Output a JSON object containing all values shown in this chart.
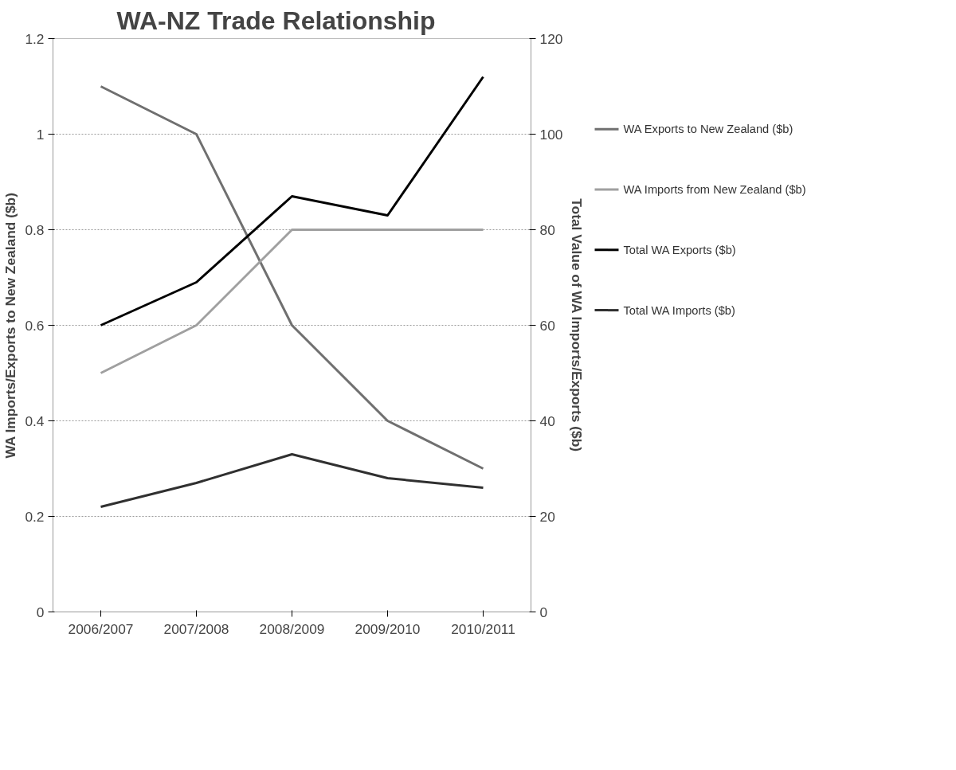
{
  "chart_data": {
    "type": "line",
    "title": "WA-NZ Trade Relationship",
    "categories": [
      "2006/2007",
      "2007/2008",
      "2008/2009",
      "2009/2010",
      "2010/2011"
    ],
    "ylabel": "WA Imports/Exports to New Zealand ($b)",
    "y2label": "Total Value of WA Imports/Exports ($b)",
    "ylim": [
      0,
      1.2
    ],
    "yticks": [
      0,
      0.2,
      0.4,
      0.6,
      0.8,
      1,
      1.2
    ],
    "y2lim": [
      0,
      120
    ],
    "y2ticks": [
      0,
      20,
      40,
      60,
      80,
      100,
      120
    ],
    "grid": "y",
    "legend": "right",
    "line_style": "solid",
    "series": [
      {
        "name": "WA Exports to New Zealand ($b)",
        "color": "#707070",
        "values": [
          1.1,
          1.0,
          0.6,
          0.4,
          0.3
        ]
      },
      {
        "name": "WA Imports from New Zealand ($b)",
        "color": "#a0a0a0",
        "values": [
          0.5,
          0.6,
          0.8,
          0.8,
          0.8
        ]
      },
      {
        "name": "Total WA Exports ($b)",
        "color": "#000000",
        "axis": "y2",
        "values": [
          60,
          69,
          87,
          83,
          112
        ]
      },
      {
        "name": "Total WA Imports ($b)",
        "color": "#303030",
        "axis": "y2",
        "values": [
          22,
          27,
          33,
          28,
          26
        ]
      }
    ]
  }
}
